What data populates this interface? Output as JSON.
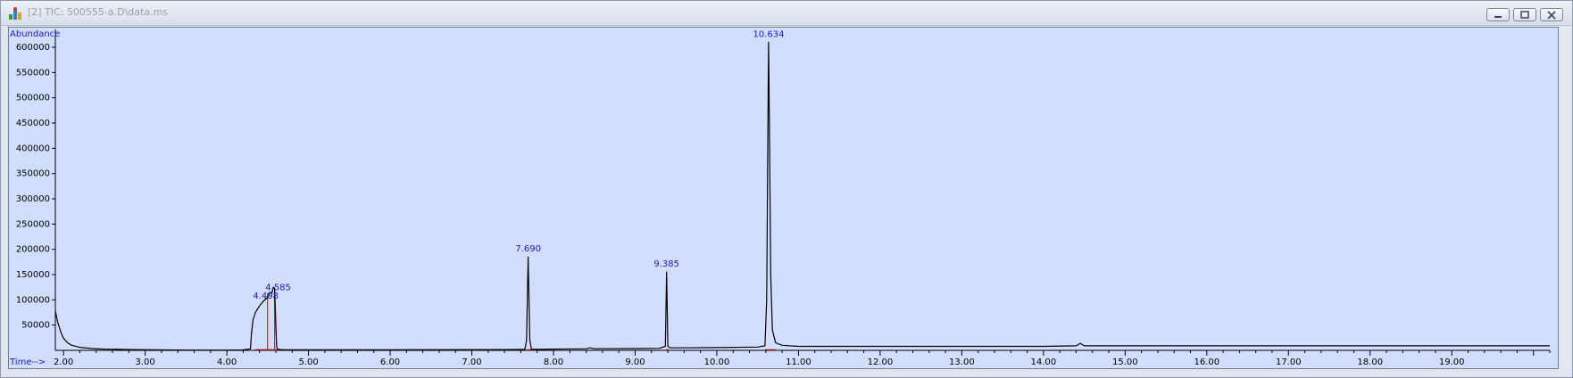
{
  "window": {
    "title": "[2] TIC: 500555-a.D\\data.ms",
    "icon": "chromatogram-app-icon",
    "buttons": [
      "minimize-icon",
      "restore-icon",
      "close-icon"
    ]
  },
  "chart_data": {
    "type": "line",
    "ylabel": "Abundance",
    "xlabel": "Time-->",
    "xlim": [
      1.9,
      20.2
    ],
    "ylim": [
      0,
      630000
    ],
    "xticks": [
      "2.00",
      "3.00",
      "4.00",
      "5.00",
      "6.00",
      "7.00",
      "8.00",
      "9.00",
      "10.00",
      "11.00",
      "12.00",
      "13.00",
      "14.00",
      "15.00",
      "16.00",
      "17.00",
      "18.00",
      "19.00"
    ],
    "yticks": [
      "50000",
      "100000",
      "150000",
      "200000",
      "250000",
      "300000",
      "350000",
      "400000",
      "450000",
      "500000",
      "550000",
      "600000"
    ],
    "grid": false,
    "series": [
      {
        "x": [
          1.9,
          1.93,
          1.97,
          2.0,
          2.05,
          2.1,
          2.2,
          2.35,
          2.5,
          2.8,
          3.2,
          3.6,
          4.0,
          4.2,
          4.29,
          4.3,
          4.32,
          4.35,
          4.4,
          4.45,
          4.5,
          4.52,
          4.53,
          4.55,
          4.56,
          4.57,
          4.585,
          4.6,
          4.61,
          4.62,
          4.65,
          4.7,
          5.0,
          6.0,
          7.0,
          7.5,
          7.65,
          7.67,
          7.69,
          7.71,
          7.73,
          7.8,
          8.0,
          8.4,
          8.45,
          8.5,
          9.0,
          9.3,
          9.37,
          9.385,
          9.4,
          9.43,
          9.5,
          10.0,
          10.5,
          10.59,
          10.61,
          10.625,
          10.634,
          10.645,
          10.66,
          10.68,
          10.72,
          10.8,
          11.0,
          12.0,
          13.0,
          14.0,
          14.4,
          14.45,
          14.5,
          15.0,
          16.0,
          17.0,
          18.0,
          19.0,
          20.2
        ],
        "y": [
          78000,
          55000,
          35000,
          24000,
          15000,
          10000,
          6000,
          3500,
          2500,
          1500,
          800,
          500,
          500,
          800,
          3000,
          30000,
          60000,
          75000,
          88000,
          98000,
          105000,
          112000,
          115000,
          113000,
          118000,
          125000,
          123000,
          50000,
          8000,
          2500,
          1500,
          1200,
          1200,
          1200,
          1400,
          1600,
          2000,
          20000,
          185000,
          20000,
          2500,
          2000,
          2500,
          3200,
          5000,
          3200,
          3500,
          4000,
          8000,
          155000,
          8000,
          5000,
          5000,
          5500,
          6500,
          9000,
          100000,
          420000,
          610000,
          420000,
          150000,
          40000,
          15000,
          10000,
          8000,
          8000,
          8000,
          8000,
          9000,
          14000,
          9000,
          9000,
          9000,
          9000,
          9000,
          9000,
          9000
        ]
      }
    ],
    "peak_labels": [
      {
        "text": "4.498",
        "x": 4.498,
        "y": 113000
      },
      {
        "text": "4.585",
        "x": 4.585,
        "y": 123000
      },
      {
        "text": "7.690",
        "x": 7.69,
        "y": 185000
      },
      {
        "text": "9.385",
        "x": 9.385,
        "y": 155000
      },
      {
        "text": "10.634",
        "x": 10.634,
        "y": 610000
      }
    ],
    "integration_marks": [
      {
        "x": 4.498,
        "y0": 0,
        "y1": 113000
      },
      {
        "x": 4.585,
        "y0": 0,
        "y1": 123000
      }
    ],
    "colors": {
      "background": "#d2deff",
      "trace": "#000000",
      "labels": "#1a1ad0",
      "integration": "#e02020"
    }
  }
}
